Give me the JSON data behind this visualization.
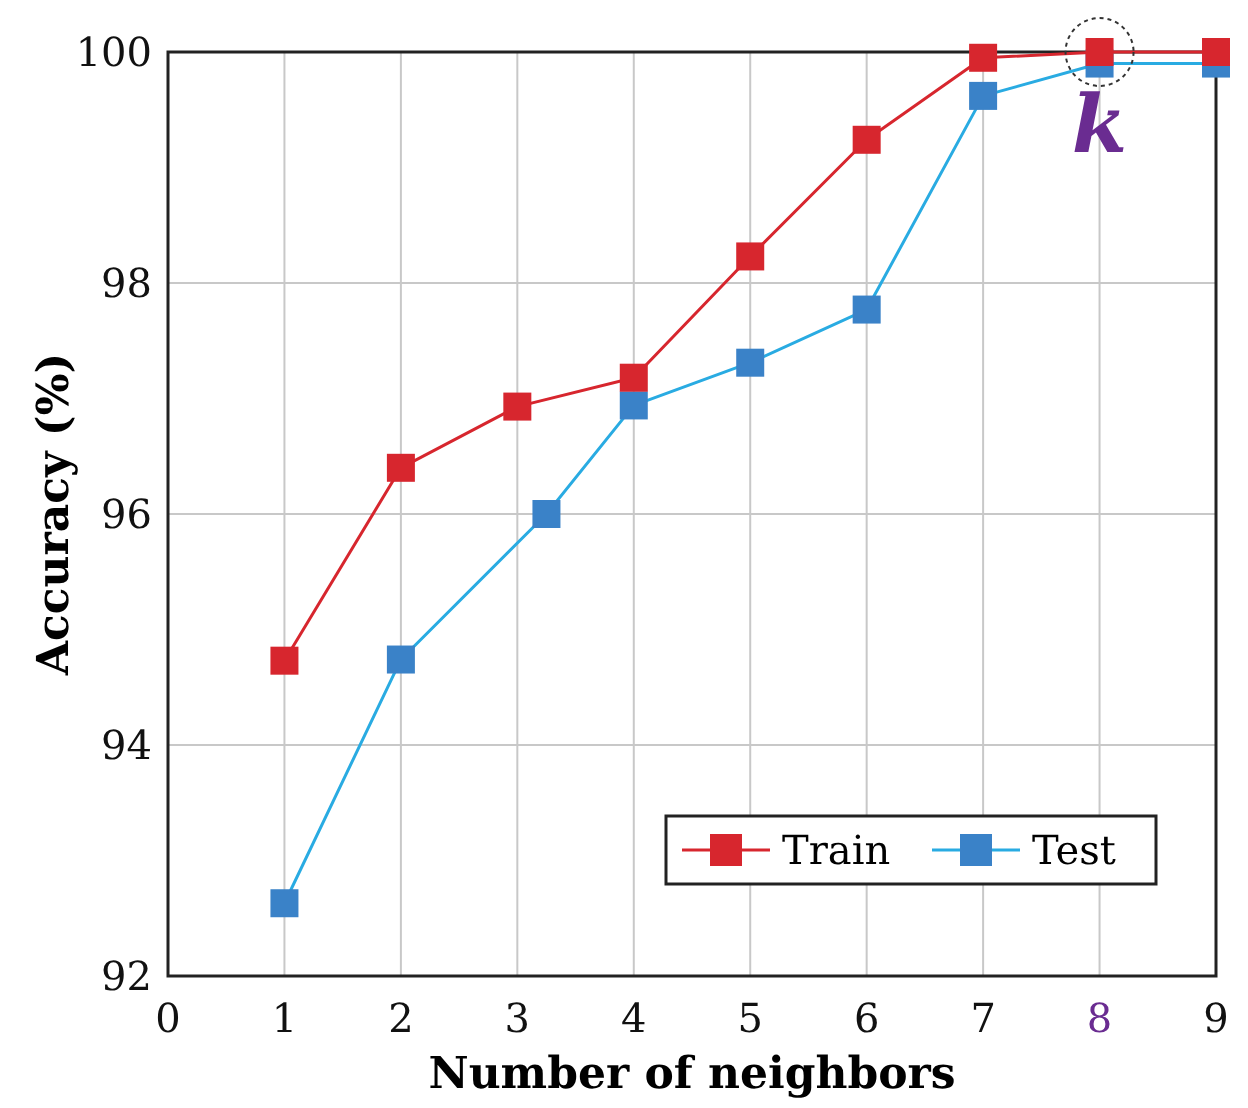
{
  "chart_data": {
    "type": "line",
    "xlabel": "Number of neighbors",
    "ylabel": "Accuracy (%)",
    "x": [
      1,
      2,
      3,
      4,
      5,
      6,
      7,
      8,
      9
    ],
    "xlim": [
      0,
      9
    ],
    "xticks": [
      0,
      1,
      2,
      3,
      4,
      5,
      6,
      7,
      8,
      9
    ],
    "ylim": [
      92,
      100
    ],
    "yticks": [
      92,
      94,
      96,
      98,
      100
    ],
    "series": [
      {
        "name": "Train",
        "color": "#d7262e",
        "values": [
          94.73,
          96.4,
          96.93,
          97.18,
          98.23,
          99.24,
          99.95,
          100,
          100
        ]
      },
      {
        "name": "Test",
        "color": "#3a82c8",
        "x": [
          1,
          2,
          3.25,
          4,
          5,
          6,
          7,
          8,
          9
        ],
        "values": [
          92.63,
          94.74,
          96.0,
          96.94,
          97.31,
          97.77,
          99.62,
          99.9,
          99.9
        ]
      }
    ],
    "annotations": [
      {
        "text": "k",
        "x": 8,
        "y": 100
      }
    ],
    "grid": true,
    "legend": "bottom right",
    "marker": "square",
    "line_style": "solid"
  }
}
